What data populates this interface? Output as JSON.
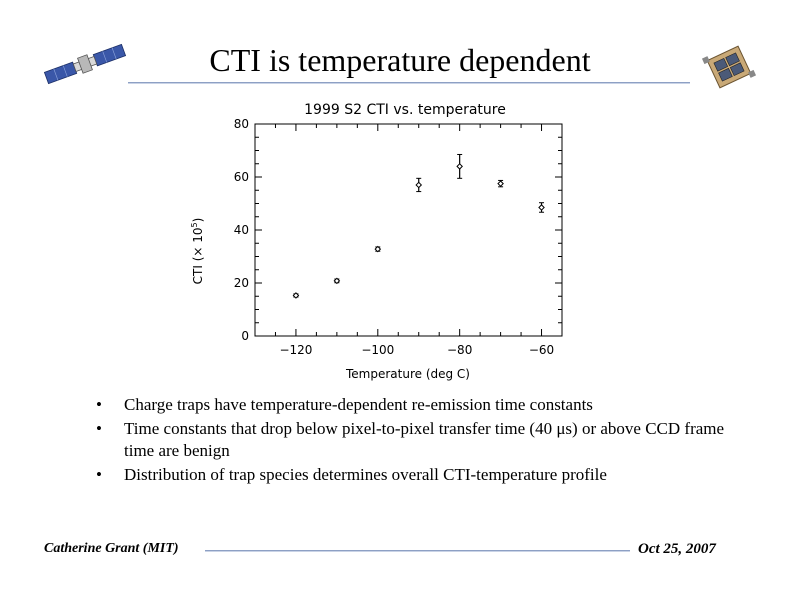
{
  "slide": {
    "title": "CTI is temperature dependent",
    "bullets": [
      "Charge traps have temperature-dependent re-emission time constants",
      "Time constants that drop below pixel-to-pixel transfer time (40 μs) or above CCD frame time are benign",
      "Distribution of trap species determines overall CTI-temperature profile"
    ],
    "footer": {
      "author": "Catherine Grant (MIT)",
      "date": "Oct 25, 2007"
    },
    "icons": {
      "left": "satellite-icon",
      "right": "ccd-instrument-icon"
    },
    "colors": {
      "rule": "#8da0c4"
    }
  },
  "chart_data": {
    "type": "scatter",
    "title": "1999 S2 CTI vs. temperature",
    "xlabel": "Temperature (deg C)",
    "ylabel": "CTI (× 10",
    "ylabel_exponent": "5",
    "ylabel_close": ")",
    "xlim": [
      -130,
      -55
    ],
    "ylim": [
      0,
      80
    ],
    "xticks": [
      -120,
      -100,
      -80,
      -60
    ],
    "xtick_labels": [
      "−120",
      "−100",
      "−80",
      "−60"
    ],
    "yticks": [
      0,
      20,
      40,
      60,
      80
    ],
    "ytick_labels": [
      "0",
      "20",
      "40",
      "60",
      "80"
    ],
    "grid": false,
    "points": [
      {
        "x": -120,
        "y": 15.3,
        "err": 0.6
      },
      {
        "x": -110,
        "y": 20.8,
        "err": 0.7
      },
      {
        "x": -100,
        "y": 32.8,
        "err": 0.8
      },
      {
        "x": -90,
        "y": 57.0,
        "err": 2.5
      },
      {
        "x": -80,
        "y": 64.0,
        "err": 4.5
      },
      {
        "x": -70,
        "y": 57.5,
        "err": 1.2
      },
      {
        "x": -60,
        "y": 48.5,
        "err": 1.8
      }
    ]
  }
}
